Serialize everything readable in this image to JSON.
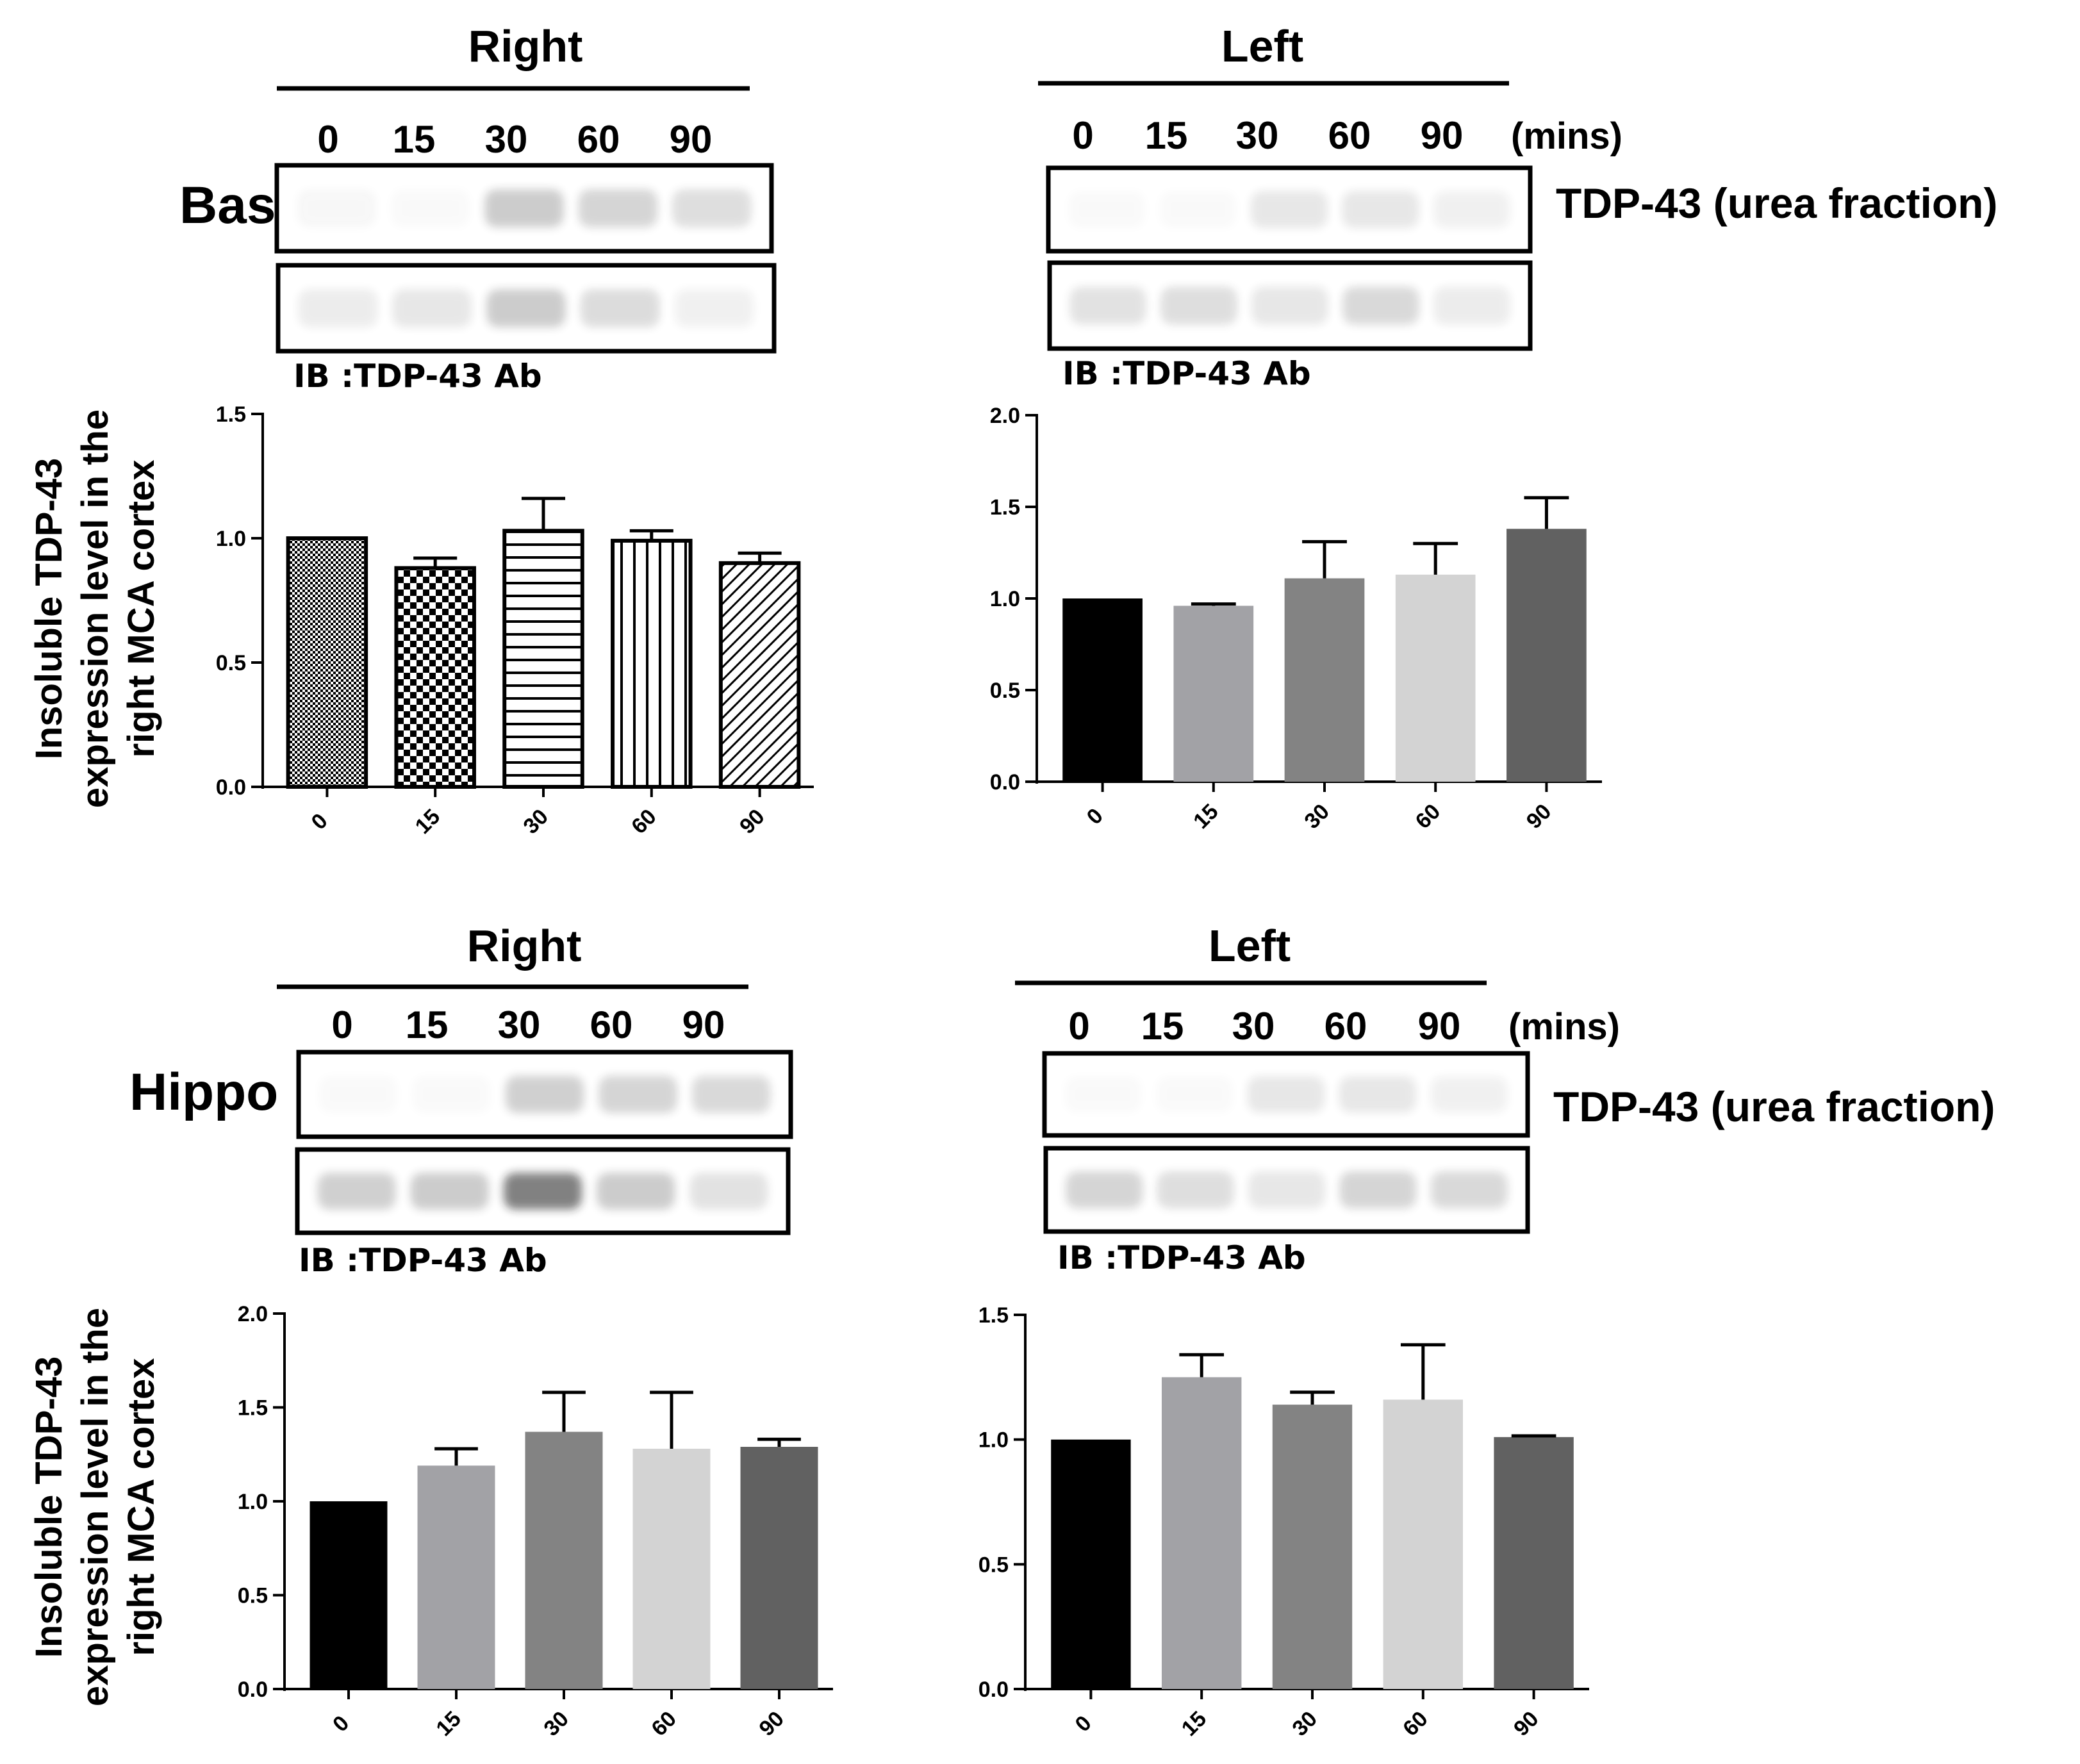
{
  "figure": {
    "time_unit": "(mins)",
    "ylabel_lines": [
      "Insoluble TDP-43",
      "expression level in the",
      "right MCA cortex"
    ],
    "colors": {
      "text": "#000000",
      "blot_bg": "#ffffff",
      "band_dark": "#1a1a1a"
    }
  },
  "sections": [
    {
      "region": "Baso",
      "blot_label": "TDP-43 (urea fraction)",
      "panels": [
        {
          "side": "Right",
          "lanes": [
            "0",
            "15",
            "30",
            "60",
            "90"
          ],
          "ib_label": "IB :TDP-43 Ab",
          "band_top": [
            0.03,
            0.02,
            0.22,
            0.18,
            0.14
          ],
          "band_bottom": [
            0.08,
            0.1,
            0.22,
            0.15,
            0.06
          ]
        },
        {
          "side": "Left",
          "lanes": [
            "0",
            "15",
            "30",
            "60",
            "90"
          ],
          "ib_label": "IB :TDP-43 Ab",
          "band_top": [
            0.02,
            0.02,
            0.1,
            0.1,
            0.06
          ],
          "band_bottom": [
            0.12,
            0.14,
            0.1,
            0.16,
            0.08
          ]
        }
      ]
    },
    {
      "region": "Hippo",
      "blot_label": "TDP-43 (urea fraction)",
      "panels": [
        {
          "side": "Right",
          "lanes": [
            "0",
            "15",
            "30",
            "60",
            "90"
          ],
          "ib_label": "IB :TDP-43 Ab",
          "band_top": [
            0.02,
            0.02,
            0.2,
            0.18,
            0.16
          ],
          "band_bottom": [
            0.2,
            0.22,
            0.55,
            0.22,
            0.12
          ]
        },
        {
          "side": "Left",
          "lanes": [
            "0",
            "15",
            "30",
            "60",
            "90"
          ],
          "ib_label": "IB :TDP-43 Ab",
          "band_top": [
            0.02,
            0.02,
            0.1,
            0.1,
            0.06
          ],
          "band_bottom": [
            0.18,
            0.14,
            0.1,
            0.18,
            0.16
          ]
        }
      ]
    }
  ],
  "chart_data": [
    {
      "type": "bar",
      "title": "Baso Right",
      "categories": [
        "0",
        "15",
        "30",
        "60",
        "90"
      ],
      "values": [
        1.0,
        0.88,
        1.03,
        0.99,
        0.9
      ],
      "errors": [
        0,
        0.04,
        0.13,
        0.04,
        0.04
      ],
      "ylim": [
        0,
        1.5
      ],
      "yticks": [
        "0.0",
        "0.5",
        "1.0",
        "1.5"
      ],
      "ylabel": "Insoluble TDP-43 expression level in the right MCA cortex",
      "patterns": [
        "dense",
        "checker",
        "hlines",
        "vlines",
        "diag"
      ],
      "colors": [
        "#ffffff",
        "#ffffff",
        "#ffffff",
        "#ffffff",
        "#ffffff"
      ]
    },
    {
      "type": "bar",
      "title": "Baso Left",
      "categories": [
        "0",
        "15",
        "30",
        "60",
        "90"
      ],
      "values": [
        1.0,
        0.96,
        1.11,
        1.13,
        1.38
      ],
      "errors": [
        0,
        0.01,
        0.2,
        0.17,
        0.17
      ],
      "ylim": [
        0,
        2.0
      ],
      "yticks": [
        "0.0",
        "0.5",
        "1.0",
        "1.5",
        "2.0"
      ],
      "ylabel": "",
      "patterns": [
        "solid",
        "solid",
        "solid",
        "solid",
        "solid"
      ],
      "colors": [
        "#000000",
        "#a2a2a6",
        "#838383",
        "#d3d3d3",
        "#616161"
      ]
    },
    {
      "type": "bar",
      "title": "Hippo Right",
      "categories": [
        "0",
        "15",
        "30",
        "60",
        "90"
      ],
      "values": [
        1.0,
        1.19,
        1.37,
        1.28,
        1.29
      ],
      "errors": [
        0,
        0.09,
        0.21,
        0.3,
        0.04
      ],
      "ylim": [
        0,
        2.0
      ],
      "yticks": [
        "0.0",
        "0.5",
        "1.0",
        "1.5",
        "2.0"
      ],
      "ylabel": "Insoluble TDP-43 expression level in the right MCA cortex",
      "patterns": [
        "solid",
        "solid",
        "solid",
        "solid",
        "solid"
      ],
      "colors": [
        "#000000",
        "#a2a2a6",
        "#838383",
        "#d3d3d3",
        "#616161"
      ]
    },
    {
      "type": "bar",
      "title": "Hippo Left",
      "categories": [
        "0",
        "15",
        "30",
        "60",
        "90"
      ],
      "values": [
        1.0,
        1.25,
        1.14,
        1.16,
        1.01
      ],
      "errors": [
        0,
        0.09,
        0.05,
        0.22,
        0.005
      ],
      "ylim": [
        0,
        1.5
      ],
      "yticks": [
        "0.0",
        "0.5",
        "1.0",
        "1.5"
      ],
      "ylabel": "",
      "patterns": [
        "solid",
        "solid",
        "solid",
        "solid",
        "solid"
      ],
      "colors": [
        "#000000",
        "#a2a2a6",
        "#838383",
        "#d3d3d3",
        "#616161"
      ]
    }
  ]
}
